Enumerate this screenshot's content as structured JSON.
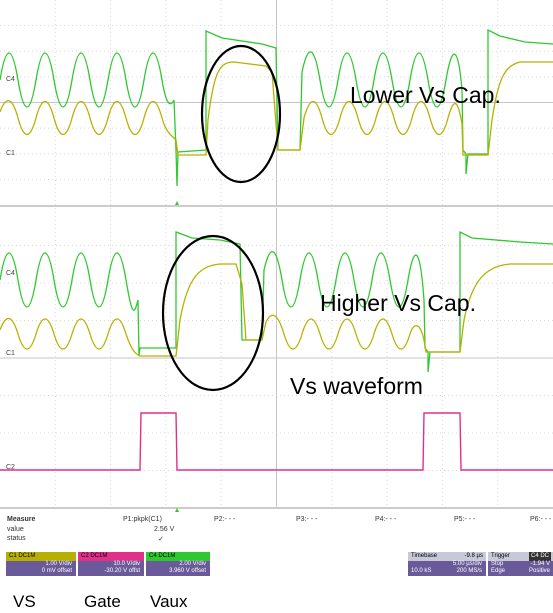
{
  "annotations": {
    "lower": "Lower Vs Cap.",
    "higher": "Higher Vs Cap.",
    "waveform": "Vs waveform"
  },
  "channel_markers": {
    "top_c4": "C4",
    "top_c1": "C1",
    "mid_c4": "C4",
    "mid_c1": "C1",
    "mid_c2": "C2"
  },
  "measure": {
    "title": "Measure",
    "row_labels": [
      "value",
      "status"
    ],
    "params": [
      "P1:pkpk(C1)",
      "P2:- - -",
      "P3:- - -",
      "P4:- - -",
      "P5:- - -",
      "P6:- - -"
    ],
    "p1_value": "2.56 V",
    "p1_status": "✓"
  },
  "channels": [
    {
      "id": "C1",
      "tag": "DC1M",
      "scale": "1.00 V/div",
      "offset": "0 mV offset",
      "color": "#b8b000"
    },
    {
      "id": "C2",
      "tag": "DC1M",
      "scale": "10.0 V/div",
      "offset": "-30.20 V offst",
      "color": "#e0308a"
    },
    {
      "id": "C4",
      "tag": "DC1M",
      "scale": "2.00 V/div",
      "offset": "3.960 V offset",
      "color": "#30c830"
    }
  ],
  "timebase": {
    "label": "Timebase",
    "delay": "-9.8 µs",
    "per_div": "5.00 µs/div",
    "samples": "10.0 kS",
    "rate": "200 MS/s"
  },
  "trigger": {
    "label": "Trigger",
    "mode": "Stop",
    "type": "Edge",
    "level": "-1.94 V",
    "slope": "Positive",
    "tag": "C4 DC"
  },
  "bottom_labels": {
    "vs": "VS",
    "gate": "Gate",
    "vaux": "Vaux"
  },
  "colors": {
    "c1": "#b8b000",
    "c2": "#e0308a",
    "c4": "#30c830",
    "panel_header": "#6a5a9a"
  }
}
